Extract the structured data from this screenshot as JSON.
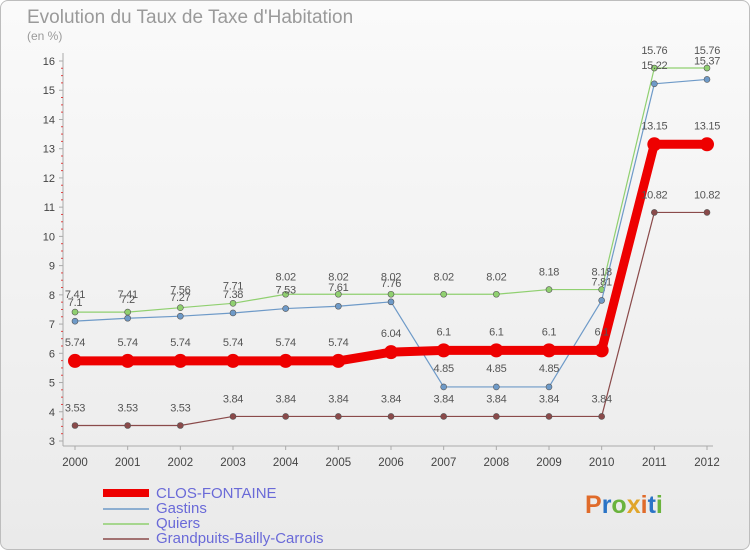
{
  "title": "Evolution du Taux de Taxe d'Habitation",
  "unit_label": "(en %)",
  "logo": {
    "text": "Proxiti",
    "colors": [
      "#e06b2a",
      "#2b74c6",
      "#6ab33d",
      "#e0a52a"
    ]
  },
  "chart_data": {
    "type": "line",
    "x": [
      "2000",
      "2001",
      "2002",
      "2003",
      "2004",
      "2005",
      "2006",
      "2007",
      "2008",
      "2009",
      "2010",
      "2011",
      "2012"
    ],
    "ylim": [
      3,
      16
    ],
    "yticks": [
      3,
      4,
      5,
      6,
      7,
      8,
      9,
      10,
      11,
      12,
      13,
      14,
      15,
      16
    ],
    "grid": false,
    "legend_position": "bottom-left",
    "series": [
      {
        "name": "CLOS-FONTAINE",
        "color": "#ee0000",
        "width": 9,
        "marker": 7,
        "values": [
          5.74,
          5.74,
          5.74,
          5.74,
          5.74,
          5.74,
          6.04,
          6.1,
          6.1,
          6.1,
          6.1,
          13.15,
          13.15
        ],
        "labels": [
          "5.74",
          "5.74",
          "5.74",
          "5.74",
          "5.74",
          "5.74",
          "6.04",
          "6.1",
          "6.1",
          "6.1",
          "6.1",
          "13.15",
          "13.15"
        ]
      },
      {
        "name": "Gastins",
        "color": "#6e9ac8",
        "width": 1.2,
        "marker": 3,
        "values": [
          7.1,
          7.2,
          7.27,
          7.38,
          7.53,
          7.61,
          7.76,
          4.85,
          4.85,
          4.85,
          7.81,
          15.22,
          15.37
        ],
        "labels": [
          "7.1",
          "7.2",
          "7.27",
          "7.38",
          "7.53",
          "7.61",
          "7.76",
          "4.85",
          "4.85",
          "4.85",
          "7.81",
          "15.22",
          "15.37"
        ]
      },
      {
        "name": "Quiers",
        "color": "#90d070",
        "width": 1.2,
        "marker": 3,
        "values": [
          7.41,
          7.41,
          7.56,
          7.71,
          8.02,
          8.02,
          8.02,
          8.02,
          8.02,
          8.18,
          8.18,
          15.76,
          15.76
        ],
        "labels": [
          "7.41",
          "7.41",
          "7.56",
          "7.71",
          "8.02",
          "8.02",
          "8.02",
          "8.02",
          "8.02",
          "8.18",
          "8.18",
          "15.76",
          "15.76"
        ]
      },
      {
        "name": "Grandpuits-Bailly-Carrois",
        "color": "#8a4a4a",
        "width": 1.2,
        "marker": 3,
        "values": [
          3.53,
          3.53,
          3.53,
          3.84,
          3.84,
          3.84,
          3.84,
          3.84,
          3.84,
          3.84,
          3.84,
          10.82,
          10.82
        ],
        "labels": [
          "3.53",
          "3.53",
          "3.53",
          "3.84",
          "3.84",
          "3.84",
          "3.84",
          "3.84",
          "3.84",
          "3.84",
          "3.84",
          "10.82",
          "10.82"
        ]
      }
    ]
  }
}
